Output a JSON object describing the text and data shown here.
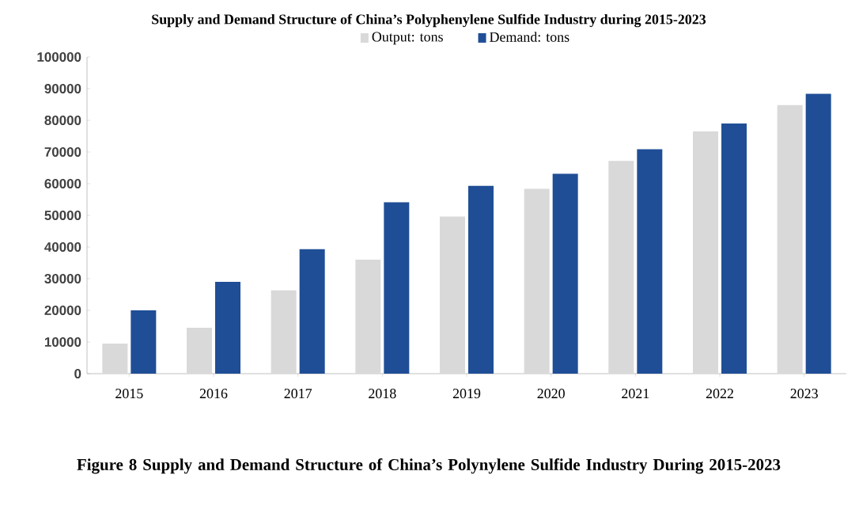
{
  "chart_data": {
    "type": "bar",
    "title": "Supply and Demand Structure of China’s Polyphenylene Sulfide Industry during 2015-2023",
    "categories": [
      "2015",
      "2016",
      "2017",
      "2018",
      "2019",
      "2020",
      "2021",
      "2022",
      "2023"
    ],
    "series": [
      {
        "name": "Output: tons",
        "color": "#d9d9d9",
        "values": [
          9500,
          14500,
          26300,
          36000,
          49600,
          58400,
          67200,
          76500,
          84800
        ]
      },
      {
        "name": "Demand: tons",
        "color": "#1f4e96",
        "values": [
          20000,
          29000,
          39300,
          54100,
          59300,
          63100,
          70900,
          79000,
          88400
        ]
      }
    ],
    "ylim": [
      0,
      100000
    ],
    "yticks": [
      0,
      10000,
      20000,
      30000,
      40000,
      50000,
      60000,
      70000,
      80000,
      90000,
      100000
    ],
    "legend": "top",
    "annotations": [
      "Figure 8 Supply and Demand Structure of China’s Polynylene Sulfide Industry During 2015-2023"
    ]
  }
}
